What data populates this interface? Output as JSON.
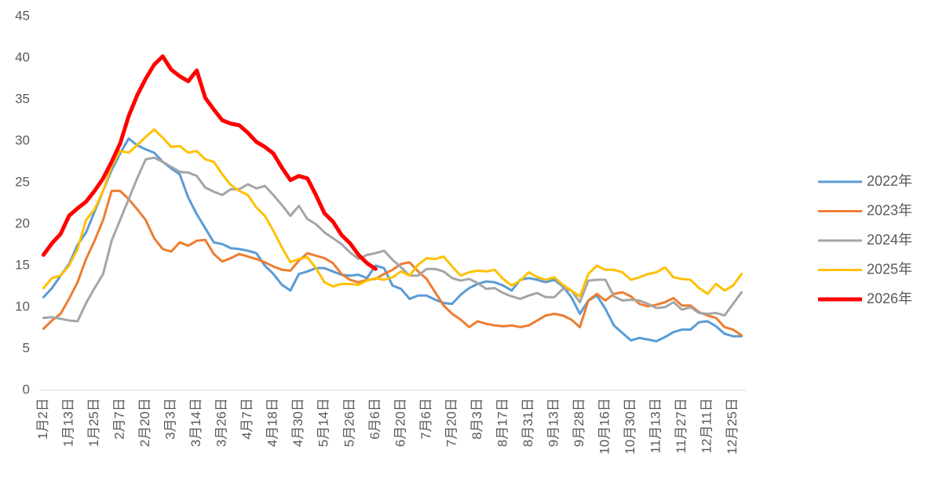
{
  "chart_data": {
    "type": "line",
    "categories": [
      "1月2日",
      null,
      null,
      "1月13日",
      null,
      null,
      "1月25日",
      null,
      null,
      "2月7日",
      null,
      null,
      "2月20日",
      null,
      null,
      "3月3日",
      null,
      null,
      "3月14日",
      null,
      null,
      "3月26日",
      null,
      null,
      "4月7日",
      null,
      null,
      "4月18日",
      null,
      null,
      "4月30日",
      null,
      null,
      "5月14日",
      null,
      null,
      "5月26日",
      null,
      null,
      "6月6日",
      null,
      null,
      "6月20日",
      null,
      null,
      "7月6日",
      null,
      null,
      "7月20日",
      null,
      null,
      "8月3日",
      null,
      null,
      "8月17日",
      null,
      null,
      "8月31日",
      null,
      null,
      "9月13日",
      null,
      null,
      "9月28日",
      null,
      null,
      "10月16日",
      null,
      null,
      "10月30日",
      null,
      null,
      "11月13日",
      null,
      null,
      "11月27日",
      null,
      null,
      "12月11日",
      null,
      null,
      "12月25日",
      null
    ],
    "series": [
      {
        "name": "2022年",
        "color": "#5b9bd5",
        "width": 3,
        "values": [
          11.2,
          12.3,
          13.8,
          15.2,
          17.5,
          19,
          21.5,
          24,
          26.5,
          28.5,
          30.3,
          29.5,
          29,
          28.6,
          27.5,
          26.7,
          26,
          23.2,
          21.2,
          19.5,
          17.8,
          17.6,
          17.1,
          17,
          16.8,
          16.5,
          15,
          14,
          12.7,
          12,
          14,
          14.3,
          14.7,
          14.7,
          14.3,
          13.9,
          13.8,
          13.9,
          13.5,
          15,
          14.7,
          12.6,
          12.2,
          11,
          11.4,
          11.4,
          10.9,
          10.5,
          10.4,
          11.5,
          12.3,
          12.8,
          13.1,
          13,
          12.6,
          12,
          13.3,
          13.5,
          13.3,
          13,
          13.3,
          12.5,
          11.2,
          9.2,
          10.8,
          11.4,
          9.8,
          7.8,
          6.9,
          6,
          6.3,
          6.1,
          5.9,
          6.4,
          7,
          7.3,
          7.3,
          8.2,
          8.3,
          7.7,
          6.8,
          6.5,
          6.5
        ]
      },
      {
        "name": "2023年",
        "color": "#ed7d31",
        "width": 3,
        "values": [
          7.4,
          8.4,
          9.2,
          11,
          13,
          15.8,
          18,
          20.5,
          24,
          24,
          23,
          21.8,
          20.5,
          18.3,
          17,
          16.7,
          17.8,
          17.4,
          18,
          18.1,
          16.4,
          15.5,
          15.9,
          16.4,
          16.1,
          15.8,
          15.4,
          14.9,
          14.5,
          14.4,
          15.6,
          16.5,
          16.2,
          15.9,
          15.3,
          14,
          13.3,
          13,
          13.3,
          13.4,
          14,
          14.5,
          15.2,
          15.4,
          14.3,
          13.4,
          11.8,
          10.2,
          9.2,
          8.5,
          7.6,
          8.3,
          8,
          7.8,
          7.7,
          7.8,
          7.6,
          7.8,
          8.4,
          9,
          9.2,
          9,
          8.5,
          7.6,
          10.8,
          11.6,
          10.8,
          11.6,
          11.8,
          11.3,
          10.4,
          10.1,
          10.3,
          10.6,
          11.1,
          10.2,
          10.2,
          9.4,
          9,
          8.7,
          7.6,
          7.3,
          6.6
        ]
      },
      {
        "name": "2024年",
        "color": "#a5a5a5",
        "width": 3,
        "values": [
          8.7,
          8.8,
          8.6,
          8.4,
          8.3,
          10.5,
          12.3,
          14,
          18,
          20.5,
          23,
          25.5,
          27.8,
          28,
          27.5,
          26.9,
          26.3,
          26.2,
          25.8,
          24.4,
          23.9,
          23.5,
          24.2,
          24.2,
          24.8,
          24.3,
          24.6,
          23.5,
          22.3,
          21,
          22.2,
          20.6,
          20,
          19,
          18.3,
          17.6,
          16.6,
          15.8,
          16.3,
          16.5,
          16.8,
          15.7,
          14.8,
          13.8,
          13.8,
          14.6,
          14.6,
          14.3,
          13.5,
          13.2,
          13.4,
          12.9,
          12.2,
          12.3,
          11.7,
          11.3,
          11,
          11.4,
          11.7,
          11.2,
          11.2,
          12.2,
          12,
          10.6,
          13.2,
          13.3,
          13.3,
          11.3,
          10.8,
          10.9,
          10.8,
          10.4,
          9.9,
          10,
          10.6,
          9.7,
          10,
          9.3,
          9.2,
          9.3,
          9,
          10.4,
          11.8
        ]
      },
      {
        "name": "2025年",
        "color": "#ffc000",
        "width": 3,
        "values": [
          12.3,
          13.5,
          13.8,
          15,
          17,
          20.5,
          21.8,
          24,
          27,
          28.8,
          28.6,
          29.5,
          30.5,
          31.4,
          30.4,
          29.3,
          29.4,
          28.6,
          28.8,
          27.8,
          27.5,
          26,
          24.7,
          24,
          23.5,
          22,
          21,
          19.2,
          17.2,
          15.4,
          15.8,
          16,
          14.7,
          13,
          12.5,
          12.8,
          12.8,
          12.7,
          13.2,
          13.5,
          13.3,
          13.6,
          14.3,
          13.8,
          15.1,
          15.9,
          15.8,
          16.1,
          14.9,
          13.8,
          14.2,
          14.4,
          14.3,
          14.5,
          13.4,
          12.6,
          13.2,
          14.2,
          13.6,
          13.3,
          13.6,
          12.7,
          12,
          11.3,
          14,
          15,
          14.5,
          14.5,
          14.2,
          13.3,
          13.6,
          14,
          14.2,
          14.8,
          13.6,
          13.4,
          13.3,
          12.3,
          11.6,
          12.8,
          12,
          12.6,
          14
        ]
      },
      {
        "name": "2026年",
        "color": "#ff0000",
        "width": 5,
        "values": [
          16.3,
          17.7,
          18.8,
          21,
          21.9,
          22.7,
          24,
          25.5,
          27.5,
          29.7,
          33,
          35.5,
          37.5,
          39.2,
          40.2,
          38.6,
          37.8,
          37.2,
          38.5,
          35.2,
          33.8,
          32.5,
          32.1,
          31.9,
          31,
          29.9,
          29.3,
          28.5,
          26.8,
          25.3,
          25.8,
          25.5,
          23.5,
          21.3,
          20.3,
          18.7,
          17.7,
          16.3,
          15.3,
          14.6,
          null,
          null,
          null,
          null,
          null,
          null,
          null,
          null,
          null,
          null,
          null,
          null,
          null,
          null,
          null,
          null,
          null,
          null,
          null,
          null,
          null,
          null,
          null,
          null,
          null,
          null,
          null,
          null,
          null,
          null,
          null,
          null,
          null,
          null,
          null,
          null,
          null,
          null,
          null,
          null,
          null,
          null,
          null
        ]
      }
    ],
    "ylim": [
      0,
      45
    ],
    "yticks": [
      0,
      5,
      10,
      15,
      20,
      25,
      30,
      35,
      40,
      45
    ],
    "grid": false,
    "legend": "right"
  }
}
